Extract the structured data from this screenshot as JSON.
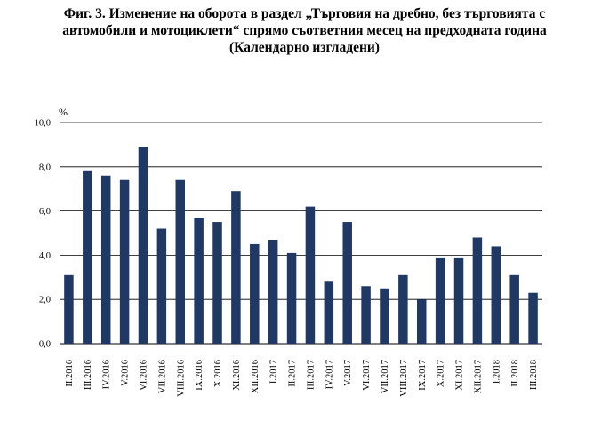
{
  "title_lines": [
    "Фиг. 3. Изменение на оборота в раздел „Търговия на дребно, без търговията с",
    "автомобили и мотоциклети“ спрямо съответния месец на предходната година",
    "(Календарно изгладени)"
  ],
  "chart_data": {
    "type": "bar",
    "title": "Фиг. 3. Изменение на оборота в раздел „Търговия на дребно, без търговията с автомобили и мотоциклети“ спрямо съответния месец на предходната година (Календарно изгладени)",
    "ylabel": "%",
    "xlabel": "",
    "ylim": [
      0,
      10
    ],
    "yticks": [
      "0,0",
      "2,0",
      "4,0",
      "6,0",
      "8,0",
      "10,0"
    ],
    "grid": true,
    "bar_color": "#1f3864",
    "categories": [
      "II.2016",
      "III.2016",
      "IV.2016",
      "V.2016",
      "VI.2016",
      "VII.2016",
      "VIII.2016",
      "IX.2016",
      "X.2016",
      "XI.2016",
      "XII.2016",
      "I.2017",
      "II.2017",
      "III.2017",
      "IV.2017",
      "V.2017",
      "VI.2017",
      "VII.2017",
      "VIII.2017",
      "IX.2017",
      "X.2017",
      "XI.2017",
      "XII.2017",
      "I.2018",
      "II.2018",
      "III.2018"
    ],
    "values": [
      3.1,
      7.8,
      7.6,
      7.4,
      8.9,
      5.2,
      7.4,
      5.7,
      5.5,
      6.9,
      4.5,
      4.7,
      4.1,
      6.2,
      2.8,
      5.5,
      2.6,
      2.5,
      3.1,
      2.0,
      3.9,
      3.9,
      4.8,
      4.4,
      3.1,
      2.3
    ]
  }
}
